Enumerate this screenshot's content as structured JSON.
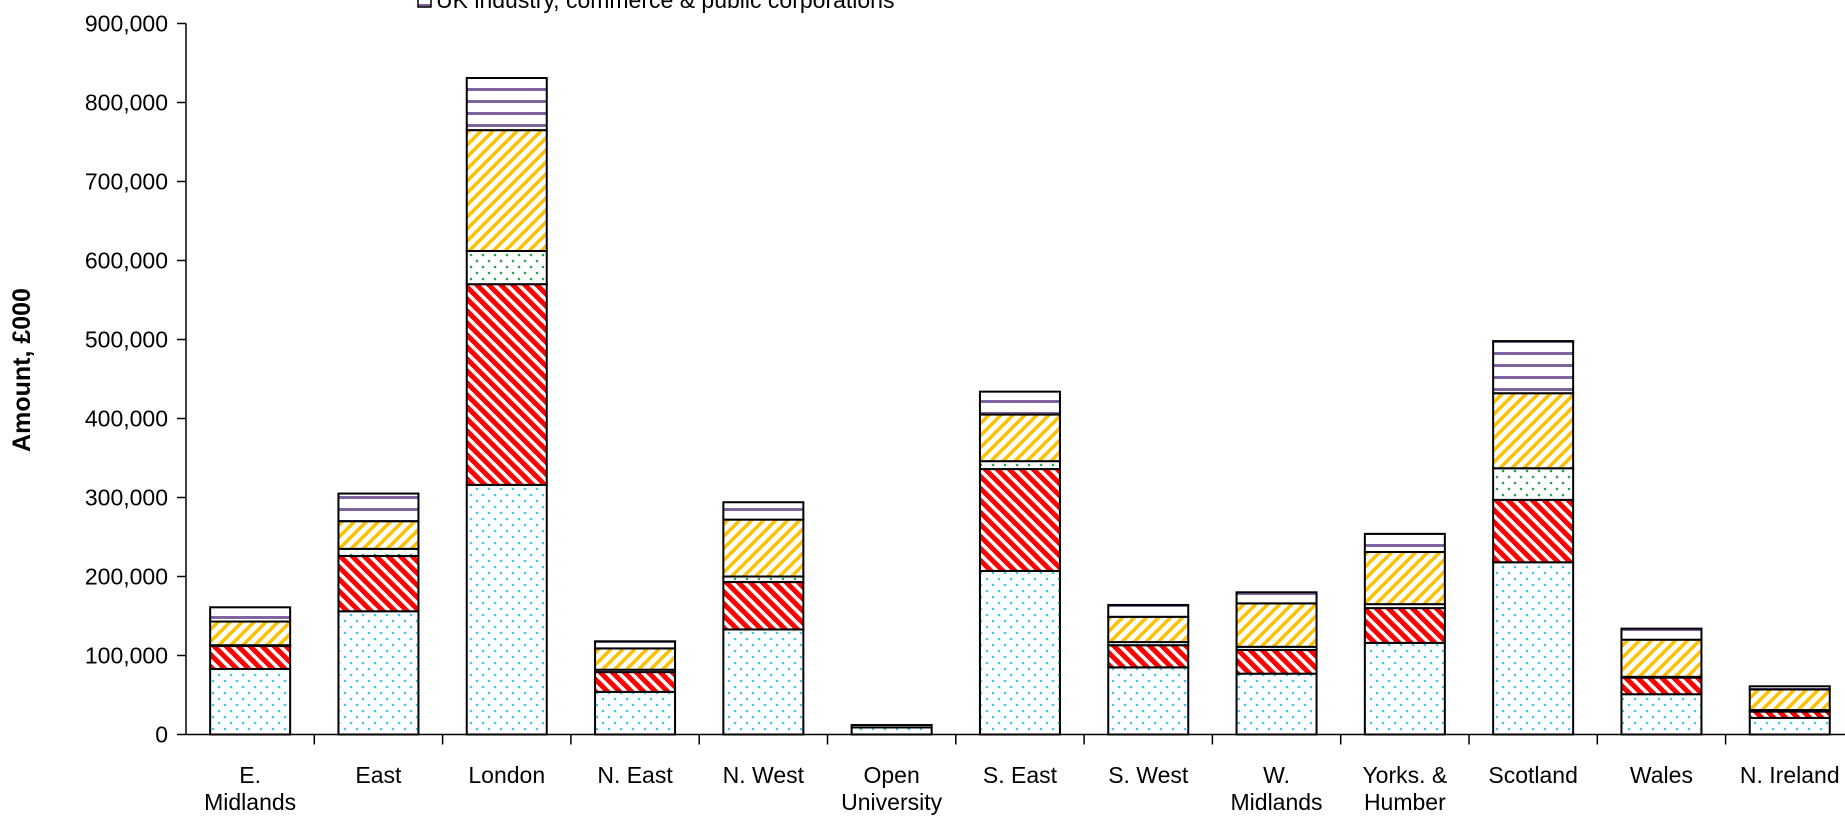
{
  "chart_data": {
    "type": "stacked_bar",
    "y_label": "Amount, £000",
    "categories": [
      "E.\nMidlands",
      "East",
      "London",
      "N. East",
      "N. West",
      "Open\nUniversity",
      "S. East",
      "S. West",
      "W.\nMidlands",
      "Yorks. &\nHumber",
      "Scotland",
      "Wales",
      "N. Ireland"
    ],
    "series": [
      {
        "color": "#40c8e0",
        "pattern": "dots",
        "values": [
          83000,
          156000,
          316000,
          54000,
          133000,
          9000,
          207000,
          85000,
          77000,
          116000,
          218000,
          51000,
          21000
        ]
      },
      {
        "color": "#ff0000",
        "pattern": "backslash",
        "values": [
          29000,
          70000,
          254000,
          25000,
          60000,
          0,
          129000,
          28000,
          30000,
          44000,
          79000,
          21000,
          8000
        ]
      },
      {
        "color": "#2ca05a",
        "pattern": "dots",
        "values": [
          1000,
          9000,
          42000,
          3000,
          7000,
          3000,
          10000,
          4000,
          4000,
          5000,
          40000,
          1000,
          2000
        ]
      },
      {
        "color": "#ffc000",
        "pattern": "slash",
        "values": [
          30000,
          35000,
          153000,
          27000,
          72000,
          0,
          59000,
          32000,
          55000,
          66000,
          95000,
          47000,
          26000
        ]
      },
      {
        "name": "UK industry, commerce & public corporations",
        "color": "#8064a2",
        "pattern": "horizontal",
        "values": [
          18000,
          35000,
          66000,
          9000,
          22000,
          0,
          29000,
          15000,
          14000,
          23000,
          66000,
          14000,
          4000
        ]
      }
    ],
    "ylim": [
      0,
      900000
    ],
    "yticks": [
      0,
      {
        "value": 100000,
        "label": "100,000"
      },
      {
        "value": 200000,
        "label": "200,000"
      },
      {
        "value": 300000,
        "label": "300,000"
      },
      {
        "value": 400000,
        "label": "400,000"
      },
      {
        "value": 500000,
        "label": "500,000"
      },
      {
        "value": 600000,
        "label": "600,000"
      },
      {
        "value": 700000,
        "label": "700,000"
      },
      {
        "value": 800000,
        "label": "800,000"
      },
      {
        "value": 900000,
        "label": "900,000"
      }
    ],
    "grid": false
  }
}
